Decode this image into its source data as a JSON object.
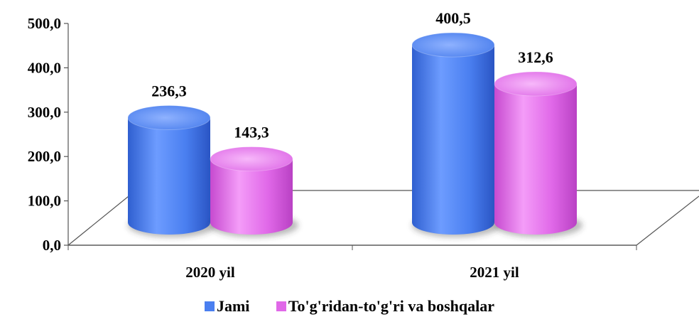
{
  "chart_data": {
    "type": "bar",
    "categories": [
      "2020 yil",
      "2021 yil"
    ],
    "series": [
      {
        "name": "Jami",
        "values": [
          236.3,
          400.5
        ],
        "value_labels": [
          "236,3",
          "400,5"
        ],
        "color": "#4a7ff0"
      },
      {
        "name": "To'g'ridan-to'g'ri va boshqalar",
        "values": [
          143.3,
          312.6
        ],
        "value_labels": [
          "143,3",
          "312,6"
        ],
        "color": "#e068e8"
      }
    ],
    "ylim": [
      0,
      500
    ],
    "yticks": [
      0,
      100,
      200,
      300,
      400,
      500
    ],
    "ytick_labels": [
      "0,0",
      "100,0",
      "200,0",
      "300,0",
      "400,0",
      "500,0"
    ],
    "grid": false,
    "legend_position": "bottom",
    "style": "3d-cylinder"
  }
}
